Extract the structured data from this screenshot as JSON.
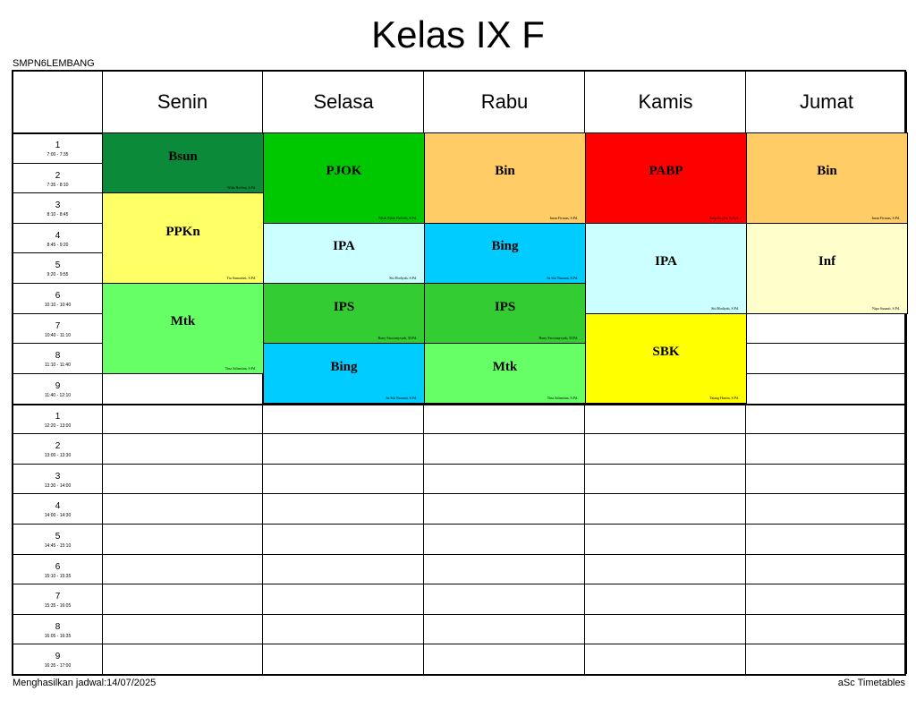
{
  "title": "Kelas IX F",
  "school": "SMPN6LEMBANG",
  "footer": {
    "generated": "Menghasilkan jadwal:14/07/2025",
    "brand": "aSc Timetables"
  },
  "days": [
    "Senin",
    "Selasa",
    "Rabu",
    "Kamis",
    "Jumat"
  ],
  "periods": [
    {
      "num": "1",
      "time": "7:00 - 7:35"
    },
    {
      "num": "2",
      "time": "7:35 - 8:10"
    },
    {
      "num": "3",
      "time": "8:10 - 8:45"
    },
    {
      "num": "4",
      "time": "8:45 - 9:20"
    },
    {
      "num": "5",
      "time": "9:20 - 9:55"
    },
    {
      "num": "6",
      "time": "10:10 - 10:40"
    },
    {
      "num": "7",
      "time": "10:40 - 11:10"
    },
    {
      "num": "8",
      "time": "11:10 - 11:40"
    },
    {
      "num": "9",
      "time": "11:40 - 12:10"
    },
    {
      "num": "1",
      "time": "12:20 - 13:00"
    },
    {
      "num": "2",
      "time": "13:00 - 13:30"
    },
    {
      "num": "3",
      "time": "13:30 - 14:00"
    },
    {
      "num": "4",
      "time": "14:00 - 14:30"
    },
    {
      "num": "5",
      "time": "14:45 - 15:10"
    },
    {
      "num": "6",
      "time": "15:10 - 15:35"
    },
    {
      "num": "7",
      "time": "15:35 - 16:05"
    },
    {
      "num": "8",
      "time": "16:05 - 16:35"
    },
    {
      "num": "9",
      "time": "16:35 - 17:00"
    }
  ],
  "lessons": [
    {
      "day": 0,
      "start": 0,
      "span": 2,
      "subject": "Bsun",
      "teacher": "Wida Herlina, S.Pd.",
      "color": "#0b8a3a",
      "fg": "#000000"
    },
    {
      "day": 0,
      "start": 2,
      "span": 3,
      "subject": "PPKn",
      "teacher": "Tia Sumartini, S.Pd.",
      "color": "#ffff66",
      "fg": "#000000"
    },
    {
      "day": 0,
      "start": 5,
      "span": 3,
      "subject": "Mtk",
      "teacher": "Tina Julianitna, S.Pd.",
      "color": "#66ff66",
      "fg": "#000000"
    },
    {
      "day": 1,
      "start": 0,
      "span": 3,
      "subject": "PJOK",
      "teacher": "Nilah Nilah Halidah, S.Pd.",
      "color": "#00c800",
      "fg": "#000000"
    },
    {
      "day": 1,
      "start": 3,
      "span": 2,
      "subject": "IPA",
      "teacher": "Siti Hodiyah, S.Pd.",
      "color": "#ccffff",
      "fg": "#000000"
    },
    {
      "day": 1,
      "start": 5,
      "span": 2,
      "subject": "IPS",
      "teacher": "Rony Siswianysyah, M.Pd.",
      "color": "#33cc33",
      "fg": "#000000"
    },
    {
      "day": 1,
      "start": 7,
      "span": 2,
      "subject": "Bing",
      "teacher": "Iis Siti Nurasni, S.Pd.",
      "color": "#00ccff",
      "fg": "#000000"
    },
    {
      "day": 2,
      "start": 0,
      "span": 3,
      "subject": "Bin",
      "teacher": "Iman Firman, S.Pd.",
      "color": "#ffcc66",
      "fg": "#000000"
    },
    {
      "day": 2,
      "start": 3,
      "span": 2,
      "subject": "Bing",
      "teacher": "Iis Siti Nurasni, S.Pd.",
      "color": "#00ccff",
      "fg": "#000000"
    },
    {
      "day": 2,
      "start": 5,
      "span": 2,
      "subject": "IPS",
      "teacher": "Rony Siswianysyah, M.Pd.",
      "color": "#33cc33",
      "fg": "#000000"
    },
    {
      "day": 2,
      "start": 7,
      "span": 2,
      "subject": "Mtk",
      "teacher": "Tina Julianitna, S.Pd.",
      "color": "#66ff66",
      "fg": "#000000"
    },
    {
      "day": 3,
      "start": 0,
      "span": 3,
      "subject": "PABP",
      "teacher": "Asep Rosyid, S.Pd.I.",
      "color": "#ff0000",
      "fg": "#000000"
    },
    {
      "day": 3,
      "start": 3,
      "span": 3,
      "subject": "IPA",
      "teacher": "Siti Hodiyah, S.Pd.",
      "color": "#ccffff",
      "fg": "#000000"
    },
    {
      "day": 3,
      "start": 6,
      "span": 3,
      "subject": "SBK",
      "teacher": "Tatang Hasim, S.Pd.",
      "color": "#ffff00",
      "fg": "#000000"
    },
    {
      "day": 4,
      "start": 0,
      "span": 3,
      "subject": "Bin",
      "teacher": "Iman Firman, S.Pd.",
      "color": "#ffcc66",
      "fg": "#000000"
    },
    {
      "day": 4,
      "start": 3,
      "span": 3,
      "subject": "Inf",
      "teacher": "Nipa Susanti, S.Pd.",
      "color": "#ffffcc",
      "fg": "#000000"
    }
  ]
}
